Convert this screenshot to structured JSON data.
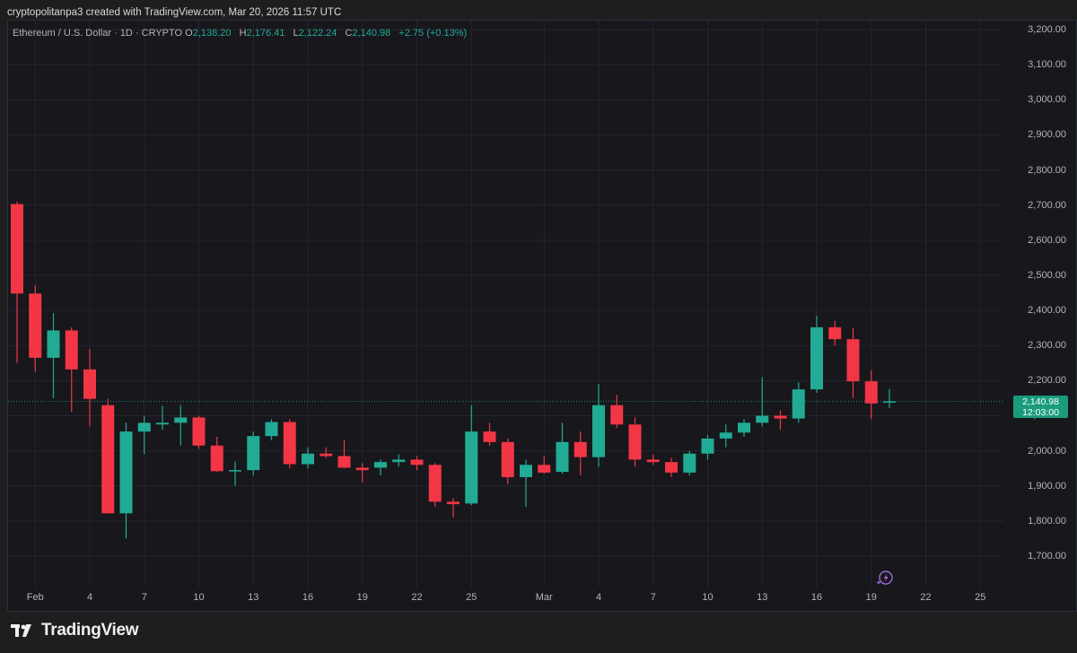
{
  "header": {
    "creator_line": "cryptopolitanpa3 created with TradingView.com, Mar 20, 2026 11:57 UTC"
  },
  "legend": {
    "symbol": "Ethereum / U.S. Dollar · 1D · CRYPTO",
    "open_key": "O",
    "open": "2,138.20",
    "high_key": "H",
    "high": "2,176.41",
    "low_key": "L",
    "low": "2,122.24",
    "close_key": "C",
    "close": "2,140.98",
    "change": "+2.75 (+0.13%)"
  },
  "current_price": {
    "price": "2,140.98",
    "countdown": "12:03:00"
  },
  "footer": {
    "brand_name": "TradingView"
  },
  "icons": {
    "brand": "tradingview-logo-icon",
    "replay": "sparkle-lightning-icon"
  },
  "colors": {
    "up": "#22ab94",
    "down": "#f23645",
    "background": "#17171c",
    "grid": "#23272f"
  },
  "chart_data": {
    "type": "candlestick",
    "title": "Ethereum / U.S. Dollar · 1D · CRYPTO",
    "y_axis": {
      "ticks": [
        "3,200.00",
        "3,100.00",
        "3,000.00",
        "2,900.00",
        "2,800.00",
        "2,700.00",
        "2,600.00",
        "2,500.00",
        "2,400.00",
        "2,300.00",
        "2,200.00",
        "2,100.00",
        "2,000.00",
        "1,900.00",
        "1,800.00",
        "1,700.00"
      ],
      "tick_values": [
        3200,
        3100,
        3000,
        2900,
        2800,
        2700,
        2600,
        2500,
        2400,
        2300,
        2200,
        2100,
        2000,
        1900,
        1800,
        1700
      ],
      "range": [
        1620,
        3230
      ],
      "position": "right"
    },
    "x_axis": {
      "ticks": [
        {
          "date": "2026-02-01",
          "label": "Feb"
        },
        {
          "date": "2026-02-04",
          "label": "4"
        },
        {
          "date": "2026-02-07",
          "label": "7"
        },
        {
          "date": "2026-02-10",
          "label": "10"
        },
        {
          "date": "2026-02-13",
          "label": "13"
        },
        {
          "date": "2026-02-16",
          "label": "16"
        },
        {
          "date": "2026-02-19",
          "label": "19"
        },
        {
          "date": "2026-02-22",
          "label": "22"
        },
        {
          "date": "2026-02-25",
          "label": "25"
        },
        {
          "date": "2026-03-01",
          "label": "Mar"
        },
        {
          "date": "2026-03-04",
          "label": "4"
        },
        {
          "date": "2026-03-07",
          "label": "7"
        },
        {
          "date": "2026-03-10",
          "label": "10"
        },
        {
          "date": "2026-03-13",
          "label": "13"
        },
        {
          "date": "2026-03-16",
          "label": "16"
        },
        {
          "date": "2026-03-19",
          "label": "19"
        },
        {
          "date": "2026-03-22",
          "label": "22"
        },
        {
          "date": "2026-03-25",
          "label": "25"
        }
      ],
      "range": [
        "2026-01-31",
        "2026-03-27"
      ]
    },
    "grid": true,
    "candles": [
      {
        "date": "2026-01-31",
        "o": 2703,
        "h": 2710,
        "l": 2250,
        "c": 2448
      },
      {
        "date": "2026-02-01",
        "o": 2448,
        "h": 2472,
        "l": 2225,
        "c": 2265
      },
      {
        "date": "2026-02-02",
        "o": 2265,
        "h": 2392,
        "l": 2150,
        "c": 2343
      },
      {
        "date": "2026-02-03",
        "o": 2343,
        "h": 2352,
        "l": 2110,
        "c": 2232
      },
      {
        "date": "2026-02-04",
        "o": 2232,
        "h": 2290,
        "l": 2070,
        "c": 2148
      },
      {
        "date": "2026-02-05",
        "o": 2130,
        "h": 2148,
        "l": 1822,
        "c": 1822
      },
      {
        "date": "2026-02-06",
        "o": 1822,
        "h": 2080,
        "l": 1750,
        "c": 2055
      },
      {
        "date": "2026-02-07",
        "o": 2055,
        "h": 2100,
        "l": 1990,
        "c": 2080
      },
      {
        "date": "2026-02-08",
        "o": 2075,
        "h": 2128,
        "l": 2060,
        "c": 2080
      },
      {
        "date": "2026-02-09",
        "o": 2080,
        "h": 2130,
        "l": 2015,
        "c": 2095
      },
      {
        "date": "2026-02-10",
        "o": 2095,
        "h": 2100,
        "l": 2005,
        "c": 2015
      },
      {
        "date": "2026-02-11",
        "o": 2015,
        "h": 2040,
        "l": 1940,
        "c": 1942
      },
      {
        "date": "2026-02-12",
        "o": 1942,
        "h": 1970,
        "l": 1900,
        "c": 1945
      },
      {
        "date": "2026-02-13",
        "o": 1945,
        "h": 2055,
        "l": 1930,
        "c": 2042
      },
      {
        "date": "2026-02-14",
        "o": 2042,
        "h": 2090,
        "l": 2030,
        "c": 2082
      },
      {
        "date": "2026-02-15",
        "o": 2082,
        "h": 2090,
        "l": 1950,
        "c": 1962
      },
      {
        "date": "2026-02-16",
        "o": 1962,
        "h": 2010,
        "l": 1950,
        "c": 1992
      },
      {
        "date": "2026-02-17",
        "o": 1992,
        "h": 2010,
        "l": 1980,
        "c": 1985
      },
      {
        "date": "2026-02-18",
        "o": 1985,
        "h": 2030,
        "l": 1950,
        "c": 1952
      },
      {
        "date": "2026-02-19",
        "o": 1952,
        "h": 1965,
        "l": 1910,
        "c": 1945
      },
      {
        "date": "2026-02-20",
        "o": 1952,
        "h": 1975,
        "l": 1930,
        "c": 1968
      },
      {
        "date": "2026-02-21",
        "o": 1968,
        "h": 1990,
        "l": 1955,
        "c": 1975
      },
      {
        "date": "2026-02-22",
        "o": 1975,
        "h": 1985,
        "l": 1945,
        "c": 1960
      },
      {
        "date": "2026-02-23",
        "o": 1960,
        "h": 1965,
        "l": 1840,
        "c": 1855
      },
      {
        "date": "2026-02-24",
        "o": 1855,
        "h": 1865,
        "l": 1810,
        "c": 1848
      },
      {
        "date": "2026-02-25",
        "o": 1850,
        "h": 2130,
        "l": 1845,
        "c": 2055
      },
      {
        "date": "2026-02-26",
        "o": 2055,
        "h": 2080,
        "l": 2015,
        "c": 2025
      },
      {
        "date": "2026-02-27",
        "o": 2025,
        "h": 2035,
        "l": 1905,
        "c": 1925
      },
      {
        "date": "2026-02-28",
        "o": 1925,
        "h": 1975,
        "l": 1840,
        "c": 1960
      },
      {
        "date": "2026-03-01",
        "o": 1960,
        "h": 1985,
        "l": 1935,
        "c": 1938
      },
      {
        "date": "2026-03-02",
        "o": 1940,
        "h": 2080,
        "l": 1935,
        "c": 2025
      },
      {
        "date": "2026-03-03",
        "o": 2025,
        "h": 2055,
        "l": 1930,
        "c": 1982
      },
      {
        "date": "2026-03-04",
        "o": 1982,
        "h": 2190,
        "l": 1955,
        "c": 2130
      },
      {
        "date": "2026-03-05",
        "o": 2130,
        "h": 2160,
        "l": 2065,
        "c": 2075
      },
      {
        "date": "2026-03-06",
        "o": 2075,
        "h": 2095,
        "l": 1955,
        "c": 1975
      },
      {
        "date": "2026-03-07",
        "o": 1975,
        "h": 1990,
        "l": 1960,
        "c": 1968
      },
      {
        "date": "2026-03-08",
        "o": 1968,
        "h": 1980,
        "l": 1925,
        "c": 1938
      },
      {
        "date": "2026-03-09",
        "o": 1938,
        "h": 2000,
        "l": 1930,
        "c": 1992
      },
      {
        "date": "2026-03-10",
        "o": 1992,
        "h": 2045,
        "l": 1975,
        "c": 2035
      },
      {
        "date": "2026-03-11",
        "o": 2035,
        "h": 2075,
        "l": 2010,
        "c": 2052
      },
      {
        "date": "2026-03-12",
        "o": 2052,
        "h": 2090,
        "l": 2040,
        "c": 2080
      },
      {
        "date": "2026-03-13",
        "o": 2080,
        "h": 2210,
        "l": 2070,
        "c": 2100
      },
      {
        "date": "2026-03-14",
        "o": 2100,
        "h": 2115,
        "l": 2060,
        "c": 2092
      },
      {
        "date": "2026-03-15",
        "o": 2092,
        "h": 2195,
        "l": 2080,
        "c": 2175
      },
      {
        "date": "2026-03-16",
        "o": 2175,
        "h": 2385,
        "l": 2165,
        "c": 2352
      },
      {
        "date": "2026-03-17",
        "o": 2352,
        "h": 2370,
        "l": 2300,
        "c": 2318
      },
      {
        "date": "2026-03-18",
        "o": 2318,
        "h": 2350,
        "l": 2150,
        "c": 2198
      },
      {
        "date": "2026-03-19",
        "o": 2198,
        "h": 2230,
        "l": 2090,
        "c": 2135
      },
      {
        "date": "2026-03-20",
        "o": 2138.2,
        "h": 2176.41,
        "l": 2122.24,
        "c": 2140.98
      }
    ],
    "last_price": 2140.98
  }
}
